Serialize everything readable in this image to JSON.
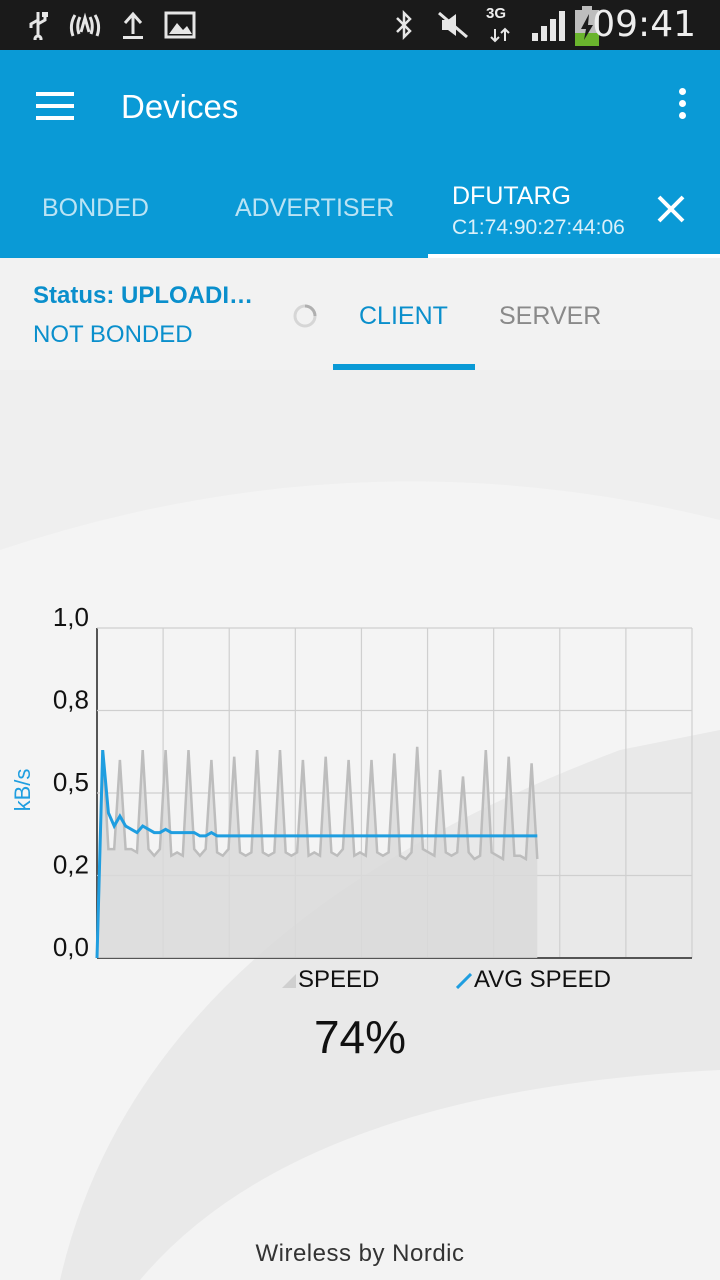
{
  "statusbar": {
    "time": "09:41",
    "network_type": "3G",
    "icons": [
      "usb-icon",
      "nfc-icon",
      "upload-icon",
      "image-icon",
      "bluetooth-icon",
      "mute-icon",
      "signal-icon",
      "battery-charging-icon"
    ]
  },
  "appbar": {
    "title": "Devices"
  },
  "tabs": {
    "bonded": "BONDED",
    "advertiser": "ADVERTISER",
    "active_name": "DFUTARG",
    "active_address": "C1:74:90:27:44:06"
  },
  "panel": {
    "status": "Status: UPLOADI…",
    "bond_state": "NOT BONDED",
    "client_tab": "CLIENT",
    "server_tab": "SERVER"
  },
  "colors": {
    "primary": "#0a9ad6",
    "accent_text": "#0a8fcc",
    "speed_series": "#c2c2c2",
    "avg_series": "#1f9ee0"
  },
  "chart_data": {
    "type": "area",
    "ylabel": "kB/s",
    "ylim": [
      0,
      1.0
    ],
    "yticks": [
      "0,0",
      "0,2",
      "0,5",
      "0,8",
      "1,0"
    ],
    "x_grid_divisions": 9,
    "grid": true,
    "legend_position": "bottom",
    "series": [
      {
        "name": "SPEED",
        "values": [
          0,
          0.63,
          0.33,
          0.33,
          0.6,
          0.33,
          0.33,
          0.32,
          0.63,
          0.33,
          0.31,
          0.33,
          0.63,
          0.31,
          0.32,
          0.31,
          0.63,
          0.33,
          0.31,
          0.33,
          0.6,
          0.32,
          0.31,
          0.33,
          0.61,
          0.32,
          0.31,
          0.32,
          0.63,
          0.32,
          0.31,
          0.32,
          0.63,
          0.32,
          0.31,
          0.32,
          0.6,
          0.31,
          0.32,
          0.31,
          0.61,
          0.32,
          0.31,
          0.33,
          0.6,
          0.31,
          0.32,
          0.31,
          0.6,
          0.32,
          0.31,
          0.32,
          0.62,
          0.31,
          0.3,
          0.32,
          0.64,
          0.33,
          0.32,
          0.31,
          0.57,
          0.32,
          0.31,
          0.32,
          0.55,
          0.32,
          0.3,
          0.31,
          0.63,
          0.32,
          0.31,
          0.3,
          0.61,
          0.31,
          0.31,
          0.3,
          0.59,
          0.3
        ]
      },
      {
        "name": "AVG SPEED",
        "values": [
          0,
          0.63,
          0.44,
          0.4,
          0.43,
          0.4,
          0.39,
          0.38,
          0.4,
          0.39,
          0.38,
          0.38,
          0.39,
          0.38,
          0.38,
          0.38,
          0.38,
          0.38,
          0.37,
          0.37,
          0.38,
          0.37,
          0.37,
          0.37,
          0.37,
          0.37,
          0.37,
          0.37,
          0.37,
          0.37,
          0.37,
          0.37,
          0.37,
          0.37,
          0.37,
          0.37,
          0.37,
          0.37,
          0.37,
          0.37,
          0.37,
          0.37,
          0.37,
          0.37,
          0.37,
          0.37,
          0.37,
          0.37,
          0.37,
          0.37,
          0.37,
          0.37,
          0.37,
          0.37,
          0.37,
          0.37,
          0.37,
          0.37,
          0.37,
          0.37,
          0.37,
          0.37,
          0.37,
          0.37,
          0.37,
          0.37,
          0.37,
          0.37,
          0.37,
          0.37,
          0.37,
          0.37,
          0.37,
          0.37,
          0.37,
          0.37,
          0.37,
          0.37
        ]
      }
    ],
    "progress_fraction": 0.74
  },
  "progress": {
    "percent_label": "74%"
  },
  "footer": {
    "text": "Wireless by Nordic"
  }
}
